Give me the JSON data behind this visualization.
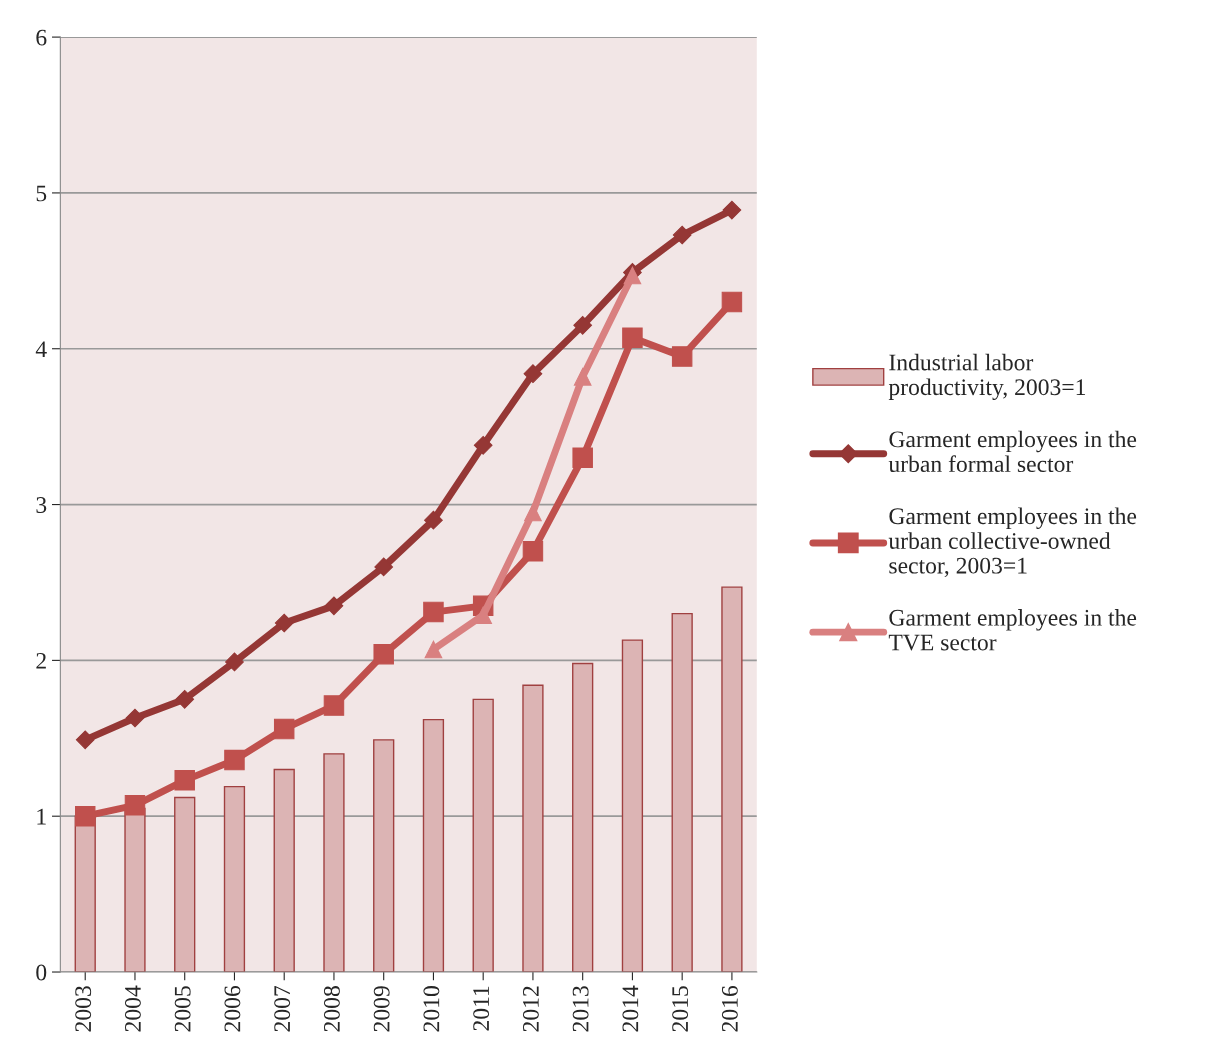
{
  "chart_data": {
    "type": "bar",
    "categories": [
      "2003",
      "2004",
      "2005",
      "2006",
      "2007",
      "2008",
      "2009",
      "2010",
      "2011",
      "2012",
      "2013",
      "2014",
      "2015",
      "2016"
    ],
    "ylim": [
      0,
      6
    ],
    "yticks": [
      0,
      1,
      2,
      3,
      4,
      5,
      6
    ],
    "grid": "y",
    "legend": "right",
    "series": [
      {
        "name": "Industrial labor productivity, 2003=1",
        "color": "#dcb4b4",
        "values": [
          1.0,
          1.05,
          1.12,
          1.19,
          1.3,
          1.4,
          1.49,
          1.62,
          1.75,
          1.84,
          1.98,
          2.13,
          2.3,
          2.47
        ]
      },
      {
        "type": "line",
        "marker": "diamond",
        "name": "Garment employees in the urban formal sector",
        "color": "#953735",
        "values": [
          1.49,
          1.63,
          1.75,
          1.99,
          2.24,
          2.35,
          2.6,
          2.9,
          3.38,
          3.84,
          4.15,
          4.49,
          4.73,
          4.89
        ]
      },
      {
        "type": "line",
        "marker": "square",
        "name": "Garment employees in the urban collective-owned sector, 2003=1",
        "color": "#c0504d",
        "values": [
          1.0,
          1.07,
          1.23,
          1.36,
          1.56,
          1.71,
          2.04,
          2.31,
          2.35,
          2.7,
          3.3,
          4.07,
          3.95,
          4.3
        ]
      },
      {
        "type": "line",
        "marker": "triangle",
        "name": "Garment employees in the TVE sector",
        "color": "#d98080",
        "values": [
          null,
          null,
          null,
          null,
          null,
          null,
          null,
          2.07,
          2.29,
          2.95,
          3.82,
          4.47,
          null,
          null
        ]
      }
    ]
  }
}
